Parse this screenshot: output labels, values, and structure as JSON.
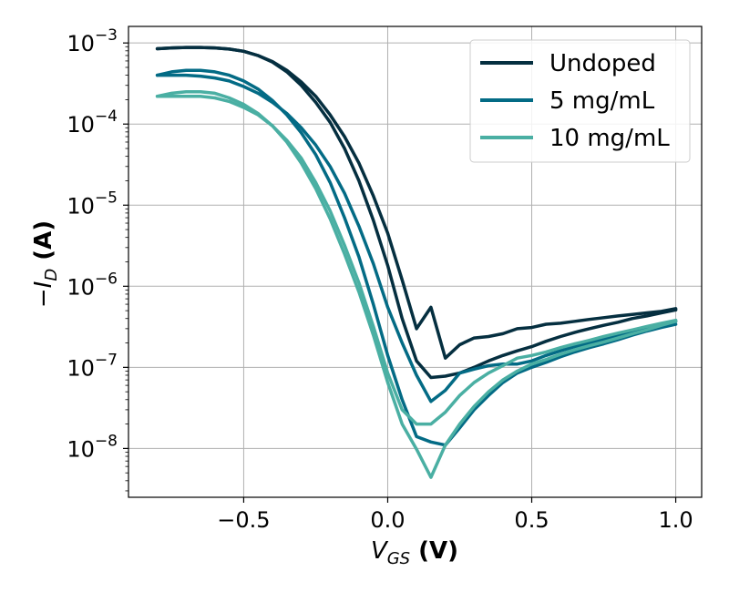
{
  "chart_data": {
    "type": "line",
    "xlabel": {
      "var": "V",
      "sub": "GS",
      "unit": "(V)"
    },
    "ylabel": {
      "sign": "−",
      "var": "I",
      "sub": "D",
      "unit": "(A)"
    },
    "xlim": [
      -0.9,
      1.09
    ],
    "ylim": [
      2.5e-09,
      0.0016
    ],
    "yscale": "log",
    "grid": true,
    "legend_position": "top-right",
    "x_ticks": [
      {
        "value": -0.5,
        "label": "−0.5"
      },
      {
        "value": 0.0,
        "label": "0.0"
      },
      {
        "value": 0.5,
        "label": "0.5"
      },
      {
        "value": 1.0,
        "label": "1.0"
      }
    ],
    "y_ticks": [
      {
        "value": 0.001,
        "base": "10",
        "exp": "−3"
      },
      {
        "value": 0.0001,
        "base": "10",
        "exp": "−4"
      },
      {
        "value": 1e-05,
        "base": "10",
        "exp": "−5"
      },
      {
        "value": 1e-06,
        "base": "10",
        "exp": "−6"
      },
      {
        "value": 1e-07,
        "base": "10",
        "exp": "−7"
      },
      {
        "value": 1e-08,
        "base": "10",
        "exp": "−8"
      }
    ],
    "series": [
      {
        "name": "Undoped",
        "color": "#052f40",
        "forward": {
          "x": [
            -0.8,
            -0.75,
            -0.7,
            -0.65,
            -0.6,
            -0.55,
            -0.5,
            -0.45,
            -0.4,
            -0.35,
            -0.3,
            -0.25,
            -0.2,
            -0.15,
            -0.1,
            -0.05,
            0.0,
            0.05,
            0.1,
            0.15,
            0.2,
            0.25,
            0.3,
            0.35,
            0.4,
            0.45,
            0.5,
            0.55,
            0.6,
            0.65,
            0.7,
            0.75,
            0.8,
            0.85,
            0.9,
            0.95,
            1.0
          ],
          "y": [
            0.00085,
            0.00087,
            0.00088,
            0.00088,
            0.00087,
            0.00084,
            0.00079,
            0.0007,
            0.00058,
            0.00044,
            0.0003,
            0.000185,
            0.000105,
            5e-05,
            2e-05,
            6.5e-06,
            1.8e-06,
            4e-07,
            1.2e-07,
            7.5e-08,
            7.8e-08,
            8.5e-08,
            1e-07,
            1.2e-07,
            1.4e-07,
            1.6e-07,
            1.8e-07,
            2.1e-07,
            2.4e-07,
            2.7e-07,
            3e-07,
            3.3e-07,
            3.6e-07,
            4e-07,
            4.3e-07,
            4.7e-07,
            5.1e-07
          ]
        },
        "reverse": {
          "x": [
            -0.8,
            -0.75,
            -0.7,
            -0.65,
            -0.6,
            -0.55,
            -0.5,
            -0.45,
            -0.4,
            -0.35,
            -0.3,
            -0.25,
            -0.2,
            -0.15,
            -0.1,
            -0.05,
            0.0,
            0.05,
            0.1,
            0.15,
            0.2,
            0.25,
            0.3,
            0.35,
            0.4,
            0.45,
            0.5,
            0.55,
            0.6,
            0.65,
            0.7,
            0.75,
            0.8,
            0.85,
            0.9,
            0.95,
            1.0
          ],
          "y": [
            0.00085,
            0.00087,
            0.00088,
            0.00088,
            0.00087,
            0.00084,
            0.00079,
            0.0007,
            0.00059,
            0.00046,
            0.00033,
            0.00022,
            0.00013,
            7e-05,
            3.3e-05,
            1.3e-05,
            4.5e-06,
            1.2e-06,
            3e-07,
            5.5e-07,
            1.3e-07,
            1.9e-07,
            2.3e-07,
            2.4e-07,
            2.6e-07,
            3e-07,
            3.1e-07,
            3.4e-07,
            3.5e-07,
            3.7e-07,
            3.9e-07,
            4.1e-07,
            4.3e-07,
            4.5e-07,
            4.7e-07,
            4.9e-07,
            5.3e-07
          ]
        }
      },
      {
        "name": "5 mg/mL",
        "color": "#036b85",
        "forward": {
          "x": [
            -0.8,
            -0.75,
            -0.7,
            -0.65,
            -0.6,
            -0.55,
            -0.5,
            -0.45,
            -0.4,
            -0.35,
            -0.3,
            -0.25,
            -0.2,
            -0.15,
            -0.1,
            -0.05,
            0.0,
            0.05,
            0.1,
            0.15,
            0.2,
            0.25,
            0.3,
            0.35,
            0.4,
            0.45,
            0.5,
            0.55,
            0.6,
            0.65,
            0.7,
            0.75,
            0.8,
            0.85,
            0.9,
            0.95,
            1.0
          ],
          "y": [
            0.0004,
            0.00044,
            0.00046,
            0.00046,
            0.00044,
            0.0004,
            0.00034,
            0.00027,
            0.000195,
            0.00013,
            7.8e-05,
            4.2e-05,
            1.9e-05,
            7e-06,
            2.3e-06,
            6e-07,
            1.4e-07,
            4e-08,
            1.4e-08,
            1.2e-08,
            1.1e-08,
            1.8e-08,
            3e-08,
            4.5e-08,
            6.5e-08,
            8.5e-08,
            1e-07,
            1.15e-07,
            1.35e-07,
            1.55e-07,
            1.75e-07,
            1.95e-07,
            2.2e-07,
            2.5e-07,
            2.8e-07,
            3.1e-07,
            3.4e-07
          ]
        },
        "reverse": {
          "x": [
            -0.8,
            -0.75,
            -0.7,
            -0.65,
            -0.6,
            -0.55,
            -0.5,
            -0.45,
            -0.4,
            -0.35,
            -0.3,
            -0.25,
            -0.2,
            -0.15,
            -0.1,
            -0.05,
            0.0,
            0.05,
            0.1,
            0.15,
            0.2,
            0.25,
            0.3,
            0.35,
            0.4,
            0.45,
            0.5,
            0.55,
            0.6,
            0.65,
            0.7,
            0.75,
            0.8,
            0.85,
            0.9,
            0.95,
            1.0
          ],
          "y": [
            0.0004,
            0.0004,
            0.0004,
            0.00039,
            0.00037,
            0.00034,
            0.00029,
            0.00024,
            0.000185,
            0.000135,
            9e-05,
            5.5e-05,
            3e-05,
            1.4e-05,
            5.5e-06,
            1.9e-06,
            5.5e-07,
            2e-07,
            8e-08,
            3.8e-08,
            5.2e-08,
            8.5e-08,
            9.5e-08,
            1.05e-07,
            1.1e-07,
            1.1e-07,
            1.2e-07,
            1.4e-07,
            1.6e-07,
            1.8e-07,
            2e-07,
            2.2e-07,
            2.5e-07,
            2.8e-07,
            3.1e-07,
            3.4e-07,
            3.7e-07
          ]
        }
      },
      {
        "name": "10 mg/mL",
        "color": "#4aafa3",
        "forward": {
          "x": [
            -0.8,
            -0.75,
            -0.7,
            -0.65,
            -0.6,
            -0.55,
            -0.5,
            -0.45,
            -0.4,
            -0.35,
            -0.3,
            -0.25,
            -0.2,
            -0.15,
            -0.1,
            -0.05,
            0.0,
            0.05,
            0.1,
            0.15,
            0.2,
            0.25,
            0.3,
            0.35,
            0.4,
            0.45,
            0.5,
            0.55,
            0.6,
            0.65,
            0.7,
            0.75,
            0.8,
            0.85,
            0.9,
            0.95,
            1.0
          ],
          "y": [
            0.00022,
            0.00024,
            0.00025,
            0.00025,
            0.00024,
            0.00021,
            0.000175,
            0.000135,
            9.5e-05,
            6e-05,
            3.3e-05,
            1.6e-05,
            6.8e-06,
            2.5e-06,
            8.5e-07,
            2.5e-07,
            6.5e-08,
            2e-08,
            9.8e-09,
            4.4e-09,
            1.1e-08,
            2e-08,
            3.3e-08,
            5e-08,
            7e-08,
            9e-08,
            1.1e-07,
            1.25e-07,
            1.45e-07,
            1.65e-07,
            1.85e-07,
            2.05e-07,
            2.3e-07,
            2.6e-07,
            2.9e-07,
            3.3e-07,
            3.7e-07
          ]
        },
        "reverse": {
          "x": [
            -0.8,
            -0.75,
            -0.7,
            -0.65,
            -0.6,
            -0.55,
            -0.5,
            -0.45,
            -0.4,
            -0.35,
            -0.3,
            -0.25,
            -0.2,
            -0.15,
            -0.1,
            -0.05,
            0.0,
            0.05,
            0.1,
            0.15,
            0.2,
            0.25,
            0.3,
            0.35,
            0.4,
            0.45,
            0.5,
            0.55,
            0.6,
            0.65,
            0.7,
            0.75,
            0.8,
            0.85,
            0.9,
            0.95,
            1.0
          ],
          "y": [
            0.00022,
            0.00022,
            0.00022,
            0.00022,
            0.00021,
            0.00019,
            0.00016,
            0.00013,
            9.5e-05,
            6.3e-05,
            3.8e-05,
            1.9e-05,
            8.5e-06,
            3.2e-06,
            1.1e-06,
            3.2e-07,
            8.5e-08,
            3e-08,
            2e-08,
            2e-08,
            2.8e-08,
            4.5e-08,
            6.5e-08,
            8.5e-08,
            1.05e-07,
            1.3e-07,
            1.4e-07,
            1.55e-07,
            1.75e-07,
            1.95e-07,
            2.15e-07,
            2.4e-07,
            2.65e-07,
            2.9e-07,
            3.2e-07,
            3.5e-07,
            3.8e-07
          ]
        }
      }
    ]
  }
}
